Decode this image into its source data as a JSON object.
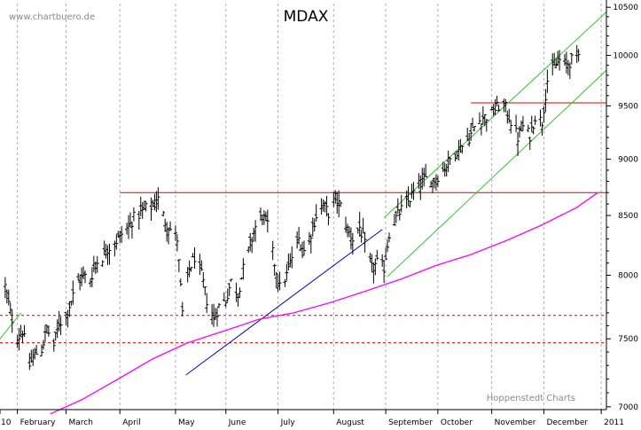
{
  "chart_data": {
    "type": "ohlc",
    "title": "MDAX",
    "source_label": "www.chartbuero.de",
    "credit_label": "Hoppenstedt Charts",
    "x_tick_labels": [
      "10",
      "February",
      "March",
      "April",
      "May",
      "June",
      "July",
      "August",
      "September",
      "October",
      "November",
      "December",
      "2011"
    ],
    "y_ticks": [
      7000,
      7500,
      8000,
      8500,
      9000,
      9500,
      10000,
      10500
    ],
    "y_tick_labels": [
      "7000",
      "7500",
      "8000",
      "8500",
      "9000",
      "9500",
      "10000",
      "10500"
    ],
    "ylim": [
      6980,
      10540
    ],
    "y_scale": "log",
    "xlim": [
      "2010-01-22",
      "2011-01-06"
    ],
    "grid": "vertical-dashed",
    "colors": {
      "price_bars": "#000000",
      "moving_average": "#ff00ff",
      "resistance_lines": "#e00000",
      "support_dashed_lines": "#e00000",
      "trend_channel": "#30c030",
      "trendline": "#0000cc",
      "grid": "#b0b0b0"
    },
    "series": [
      {
        "kind": "price",
        "points": [
          [
            "2010-01-25",
            7910
          ],
          [
            "2010-01-28",
            7700
          ],
          [
            "2010-02-01",
            7500
          ],
          [
            "2010-02-04",
            7560
          ],
          [
            "2010-02-08",
            7300
          ],
          [
            "2010-02-11",
            7380
          ],
          [
            "2010-02-15",
            7420
          ],
          [
            "2010-02-18",
            7580
          ],
          [
            "2010-02-22",
            7450
          ],
          [
            "2010-02-25",
            7620
          ],
          [
            "2010-03-01",
            7680
          ],
          [
            "2010-03-04",
            7800
          ],
          [
            "2010-03-08",
            7950
          ],
          [
            "2010-03-11",
            8000
          ],
          [
            "2010-03-15",
            7960
          ],
          [
            "2010-03-18",
            8100
          ],
          [
            "2010-03-22",
            8150
          ],
          [
            "2010-03-25",
            8220
          ],
          [
            "2010-03-29",
            8260
          ],
          [
            "2010-04-01",
            8330
          ],
          [
            "2010-04-06",
            8400
          ],
          [
            "2010-04-09",
            8480
          ],
          [
            "2010-04-13",
            8520
          ],
          [
            "2010-04-16",
            8560
          ],
          [
            "2010-04-20",
            8580
          ],
          [
            "2010-04-23",
            8640
          ],
          [
            "2010-04-27",
            8450
          ],
          [
            "2010-04-30",
            8380
          ],
          [
            "2010-05-04",
            8300
          ],
          [
            "2010-05-07",
            7700
          ],
          [
            "2010-05-11",
            8050
          ],
          [
            "2010-05-14",
            8150
          ],
          [
            "2010-05-18",
            8000
          ],
          [
            "2010-05-21",
            7800
          ],
          [
            "2010-05-25",
            7650
          ],
          [
            "2010-05-28",
            7750
          ],
          [
            "2010-06-01",
            7800
          ],
          [
            "2010-06-04",
            7950
          ],
          [
            "2010-06-08",
            7850
          ],
          [
            "2010-06-11",
            8050
          ],
          [
            "2010-06-15",
            8250
          ],
          [
            "2010-06-18",
            8400
          ],
          [
            "2010-06-22",
            8500
          ],
          [
            "2010-06-25",
            8420
          ],
          [
            "2010-06-29",
            8100
          ],
          [
            "2010-07-02",
            7900
          ],
          [
            "2010-07-06",
            8000
          ],
          [
            "2010-07-09",
            8150
          ],
          [
            "2010-07-13",
            8300
          ],
          [
            "2010-07-16",
            8200
          ],
          [
            "2010-07-20",
            8350
          ],
          [
            "2010-07-23",
            8500
          ],
          [
            "2010-07-27",
            8600
          ],
          [
            "2010-07-30",
            8520
          ],
          [
            "2010-08-03",
            8650
          ],
          [
            "2010-08-06",
            8580
          ],
          [
            "2010-08-10",
            8380
          ],
          [
            "2010-08-13",
            8300
          ],
          [
            "2010-08-17",
            8400
          ],
          [
            "2010-08-20",
            8250
          ],
          [
            "2010-08-24",
            8050
          ],
          [
            "2010-08-27",
            8100
          ],
          [
            "2010-08-31",
            8060
          ],
          [
            "2010-09-03",
            8350
          ],
          [
            "2010-09-07",
            8480
          ],
          [
            "2010-09-10",
            8550
          ],
          [
            "2010-09-14",
            8620
          ],
          [
            "2010-09-17",
            8700
          ],
          [
            "2010-09-21",
            8780
          ],
          [
            "2010-09-24",
            8820
          ],
          [
            "2010-09-28",
            8800
          ],
          [
            "2010-10-01",
            8850
          ],
          [
            "2010-10-05",
            8920
          ],
          [
            "2010-10-08",
            9000
          ],
          [
            "2010-10-12",
            9080
          ],
          [
            "2010-10-15",
            9120
          ],
          [
            "2010-10-19",
            9200
          ],
          [
            "2010-10-22",
            9300
          ],
          [
            "2010-10-26",
            9380
          ],
          [
            "2010-10-29",
            9400
          ],
          [
            "2010-11-02",
            9450
          ],
          [
            "2010-11-05",
            9500
          ],
          [
            "2010-11-09",
            9480
          ],
          [
            "2010-11-12",
            9350
          ],
          [
            "2010-11-16",
            9200
          ],
          [
            "2010-11-19",
            9300
          ],
          [
            "2010-11-23",
            9220
          ],
          [
            "2010-11-26",
            9400
          ],
          [
            "2010-11-30",
            9350
          ],
          [
            "2010-12-03",
            9750
          ],
          [
            "2010-12-06",
            9850
          ],
          [
            "2010-12-10",
            9950
          ],
          [
            "2010-12-14",
            9900
          ],
          [
            "2010-12-17",
            9950
          ],
          [
            "2010-12-21",
            10000
          ],
          [
            "2010-12-24",
            10080
          ],
          [
            "2010-12-29",
            10150
          ],
          [
            "2011-01-03",
            10200
          ]
        ]
      },
      {
        "kind": "moving_average",
        "points": [
          [
            "2010-02-20",
            6950
          ],
          [
            "2010-03-10",
            7050
          ],
          [
            "2010-03-31",
            7200
          ],
          [
            "2010-04-20",
            7350
          ],
          [
            "2010-05-10",
            7470
          ],
          [
            "2010-05-31",
            7560
          ],
          [
            "2010-06-20",
            7650
          ],
          [
            "2010-07-10",
            7700
          ],
          [
            "2010-07-31",
            7780
          ],
          [
            "2010-08-20",
            7870
          ],
          [
            "2010-09-10",
            7970
          ],
          [
            "2010-09-30",
            8080
          ],
          [
            "2010-10-20",
            8170
          ],
          [
            "2010-11-10",
            8290
          ],
          [
            "2010-11-30",
            8420
          ],
          [
            "2010-12-20",
            8570
          ],
          [
            "2011-01-01",
            8700
          ]
        ]
      },
      {
        "kind": "resistance",
        "points": [
          [
            "2010-04-01",
            8700
          ],
          [
            "2011-01-06",
            8700
          ]
        ]
      },
      {
        "kind": "resistance",
        "points": [
          [
            "2010-10-20",
            9530
          ],
          [
            "2011-01-06",
            9530
          ]
        ]
      },
      {
        "kind": "support",
        "points": [
          [
            "2010-01-22",
            7680
          ],
          [
            "2011-01-06",
            7680
          ]
        ]
      },
      {
        "kind": "support",
        "points": [
          [
            "2010-01-22",
            7470
          ],
          [
            "2011-01-06",
            7470
          ]
        ]
      },
      {
        "kind": "channel",
        "points": [
          [
            "2010-08-31",
            8480
          ],
          [
            "2011-01-06",
            10450
          ]
        ]
      },
      {
        "kind": "channel",
        "points": [
          [
            "2010-09-02",
            7990
          ],
          [
            "2011-01-06",
            9850
          ]
        ]
      },
      {
        "kind": "channel",
        "points": [
          [
            "2010-01-22",
            7500
          ],
          [
            "2010-02-03",
            7700
          ]
        ]
      },
      {
        "kind": "trendline",
        "points": [
          [
            "2010-05-09",
            7230
          ],
          [
            "2010-08-30",
            8380
          ]
        ]
      }
    ]
  }
}
